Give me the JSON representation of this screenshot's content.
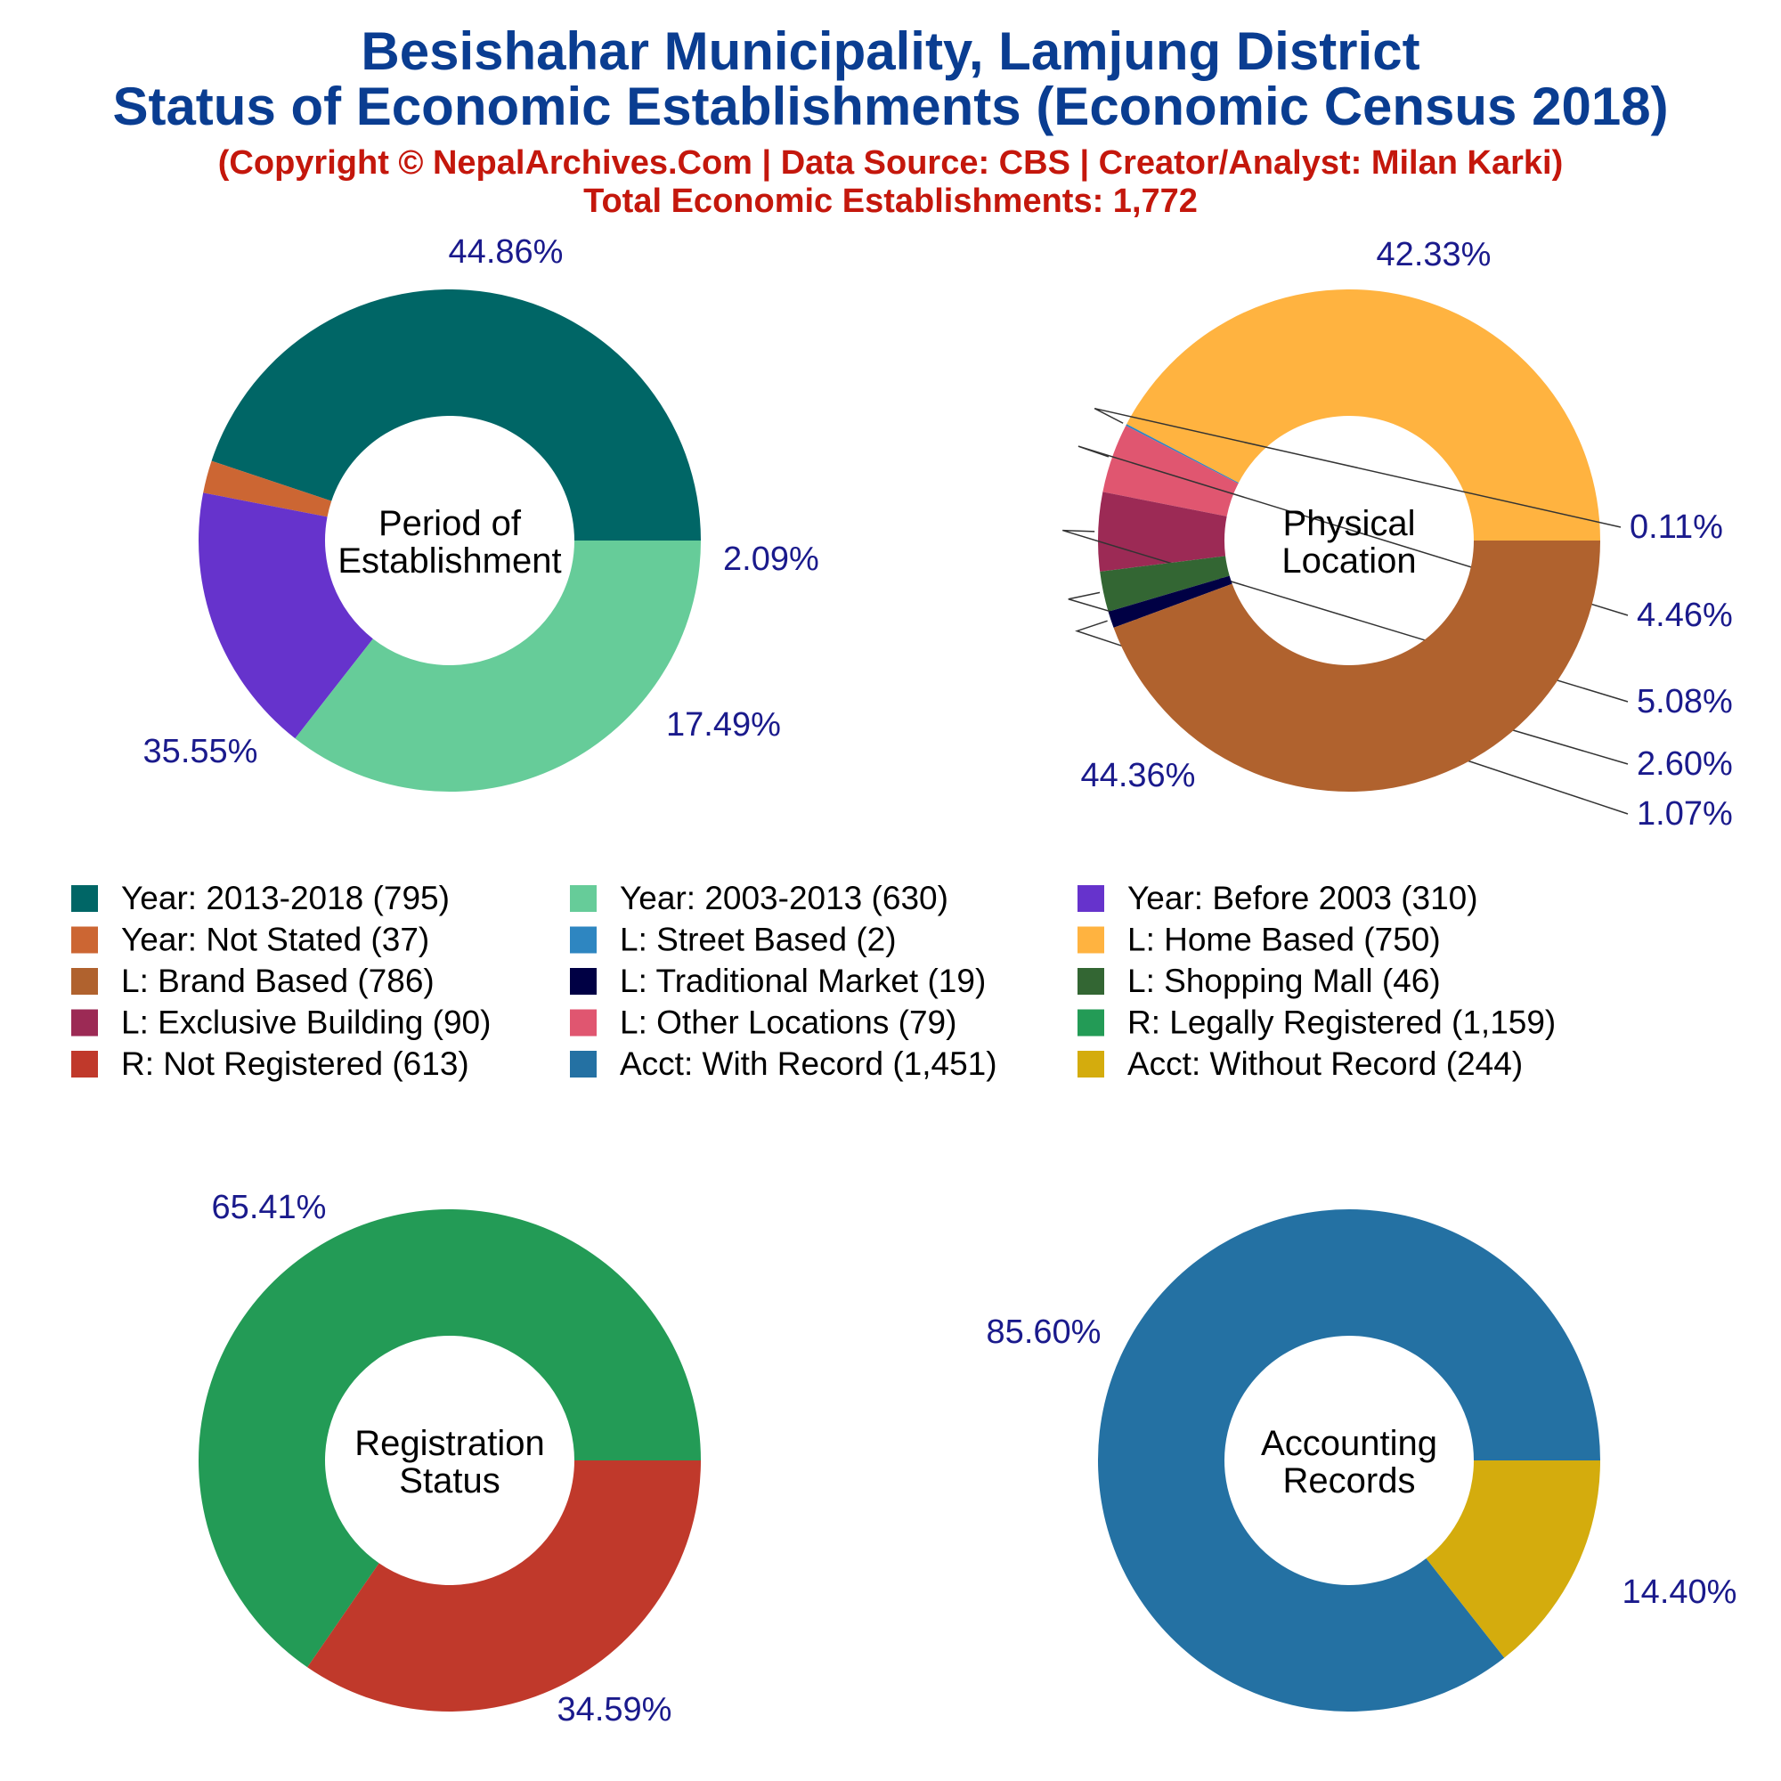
{
  "title_line1": "Besishahar Municipality, Lamjung District",
  "title_line2": "Status of Economic Establishments (Economic Census 2018)",
  "copyright": "(Copyright © NepalArchives.Com | Data Source: CBS | Creator/Analyst: Milan Karki)",
  "total": "Total Economic Establishments: 1,772",
  "colors": {
    "title": "#0a3d91",
    "subtitle": "#c4170c",
    "percent_label": "#1a1a8c"
  },
  "chart_data": [
    {
      "type": "pie",
      "center_label": [
        "Period of",
        "Establishment"
      ],
      "slices": [
        {
          "name": "Year: 2013-2018",
          "value": 795,
          "label": "44.86%",
          "color": "#006666"
        },
        {
          "name": "Year: Not Stated",
          "value": 37,
          "label": "2.09%",
          "color": "#cc6633"
        },
        {
          "name": "Year: Before 2003",
          "value": 310,
          "label": "17.49%",
          "color": "#6633cc"
        },
        {
          "name": "Year: 2003-2013",
          "value": 630,
          "label": "35.55%",
          "color": "#66cc99"
        }
      ]
    },
    {
      "type": "pie",
      "center_label": [
        "Physical",
        "Location"
      ],
      "slices": [
        {
          "name": "L: Home Based",
          "value": 750,
          "label": "42.33%",
          "color": "#ffb340"
        },
        {
          "name": "L: Street Based",
          "value": 2,
          "label": "0.11%",
          "color": "#2e86c1"
        },
        {
          "name": "L: Other Locations",
          "value": 79,
          "label": "4.46%",
          "color": "#e05670"
        },
        {
          "name": "L: Exclusive Building",
          "value": 90,
          "label": "5.08%",
          "color": "#9c2a55"
        },
        {
          "name": "L: Shopping Mall",
          "value": 46,
          "label": "2.60%",
          "color": "#336633"
        },
        {
          "name": "L: Traditional Market",
          "value": 19,
          "label": "1.07%",
          "color": "#000044"
        },
        {
          "name": "L: Brand Based",
          "value": 786,
          "label": "44.36%",
          "color": "#b0622e"
        }
      ]
    },
    {
      "type": "pie",
      "center_label": [
        "Registration",
        "Status"
      ],
      "slices": [
        {
          "name": "R: Legally Registered",
          "value": 1159,
          "label": "65.41%",
          "color": "#239b56"
        },
        {
          "name": "R: Not Registered",
          "value": 613,
          "label": "34.59%",
          "color": "#c0392b"
        }
      ]
    },
    {
      "type": "pie",
      "center_label": [
        "Accounting",
        "Records"
      ],
      "slices": [
        {
          "name": "Acct: With Record",
          "value": 1451,
          "label": "85.60%",
          "color": "#2471a3"
        },
        {
          "name": "Acct: Without Record",
          "value": 244,
          "label": "14.40%",
          "color": "#d4ac0d"
        }
      ]
    }
  ],
  "legend": [
    {
      "label": "Year: 2013-2018 (795)",
      "color": "#006666"
    },
    {
      "label": "Year: 2003-2013 (630)",
      "color": "#66cc99"
    },
    {
      "label": "Year: Before 2003 (310)",
      "color": "#6633cc"
    },
    {
      "label": "Year: Not Stated (37)",
      "color": "#cc6633"
    },
    {
      "label": "L: Street Based (2)",
      "color": "#2e86c1"
    },
    {
      "label": "L: Home Based (750)",
      "color": "#ffb340"
    },
    {
      "label": "L: Brand Based (786)",
      "color": "#b0622e"
    },
    {
      "label": "L: Traditional Market (19)",
      "color": "#000044"
    },
    {
      "label": "L: Shopping Mall (46)",
      "color": "#336633"
    },
    {
      "label": "L: Exclusive Building (90)",
      "color": "#9c2a55"
    },
    {
      "label": "L: Other Locations (79)",
      "color": "#e05670"
    },
    {
      "label": "R: Legally Registered (1,159)",
      "color": "#239b56"
    },
    {
      "label": "R: Not Registered (613)",
      "color": "#c0392b"
    },
    {
      "label": "Acct: With Record (1,451)",
      "color": "#2471a3"
    },
    {
      "label": "Acct: Without Record (244)",
      "color": "#d4ac0d"
    }
  ]
}
